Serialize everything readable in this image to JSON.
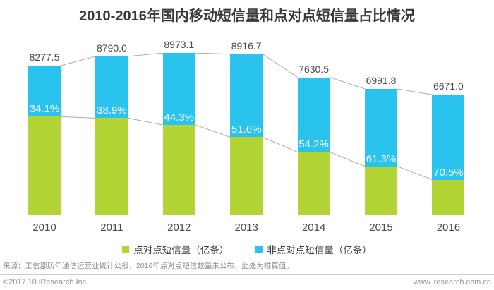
{
  "title": "2010-2016年国内移动短信量和点对点短信量占比情况",
  "chart_data": {
    "type": "bar",
    "stacked": true,
    "title": "2010-2016年国内移动短信量和点对点短信量占比情况",
    "categories": [
      "2010",
      "2011",
      "2012",
      "2013",
      "2014",
      "2015",
      "2016"
    ],
    "totals": [
      8277.5,
      8790.0,
      8973.1,
      8916.7,
      7630.5,
      6991.8,
      6671.0
    ],
    "total_labels": [
      "8277.5",
      "8790.0",
      "8973.1",
      "8916.7",
      "7630.5",
      "6991.8",
      "6671.0"
    ],
    "non_p2p_share_percent": [
      34.1,
      38.9,
      44.3,
      51.6,
      54.2,
      61.3,
      70.5
    ],
    "percent_labels": [
      "34.1%",
      "38.9%",
      "44.3%",
      "51.6%",
      "54.2%",
      "61.3%",
      "70.5%"
    ],
    "series": [
      {
        "name": "点对点短信量（亿条）",
        "color": "#b2d434",
        "values_estimated": [
          5454.9,
          5371.0,
          4998.0,
          4315.7,
          3494.8,
          2705.8,
          1967.9
        ]
      },
      {
        "name": "非点对点短信量（亿条）",
        "color": "#29c3ee",
        "values_estimated": [
          2822.6,
          3419.0,
          3975.1,
          4601.0,
          4135.7,
          4286.0,
          4703.1
        ]
      }
    ],
    "ylim": [
      0,
      8973.1
    ],
    "grid": false,
    "legend_position": "bottom",
    "connector_line_color": "#9b9b9b"
  },
  "legend": {
    "items": [
      {
        "label": "点对点短信量（亿条）",
        "color": "#b2d434"
      },
      {
        "label": "非点对点短信量（亿条）",
        "color": "#29c3ee"
      }
    ]
  },
  "footer": {
    "source_note": "来源：工信部历年通信运营业统计公报，2016年点对点短信数量未公布，此处为推算值。",
    "copyright": "©2017.10 iResearch Inc.",
    "website": "www.iresearch.com.cn"
  }
}
